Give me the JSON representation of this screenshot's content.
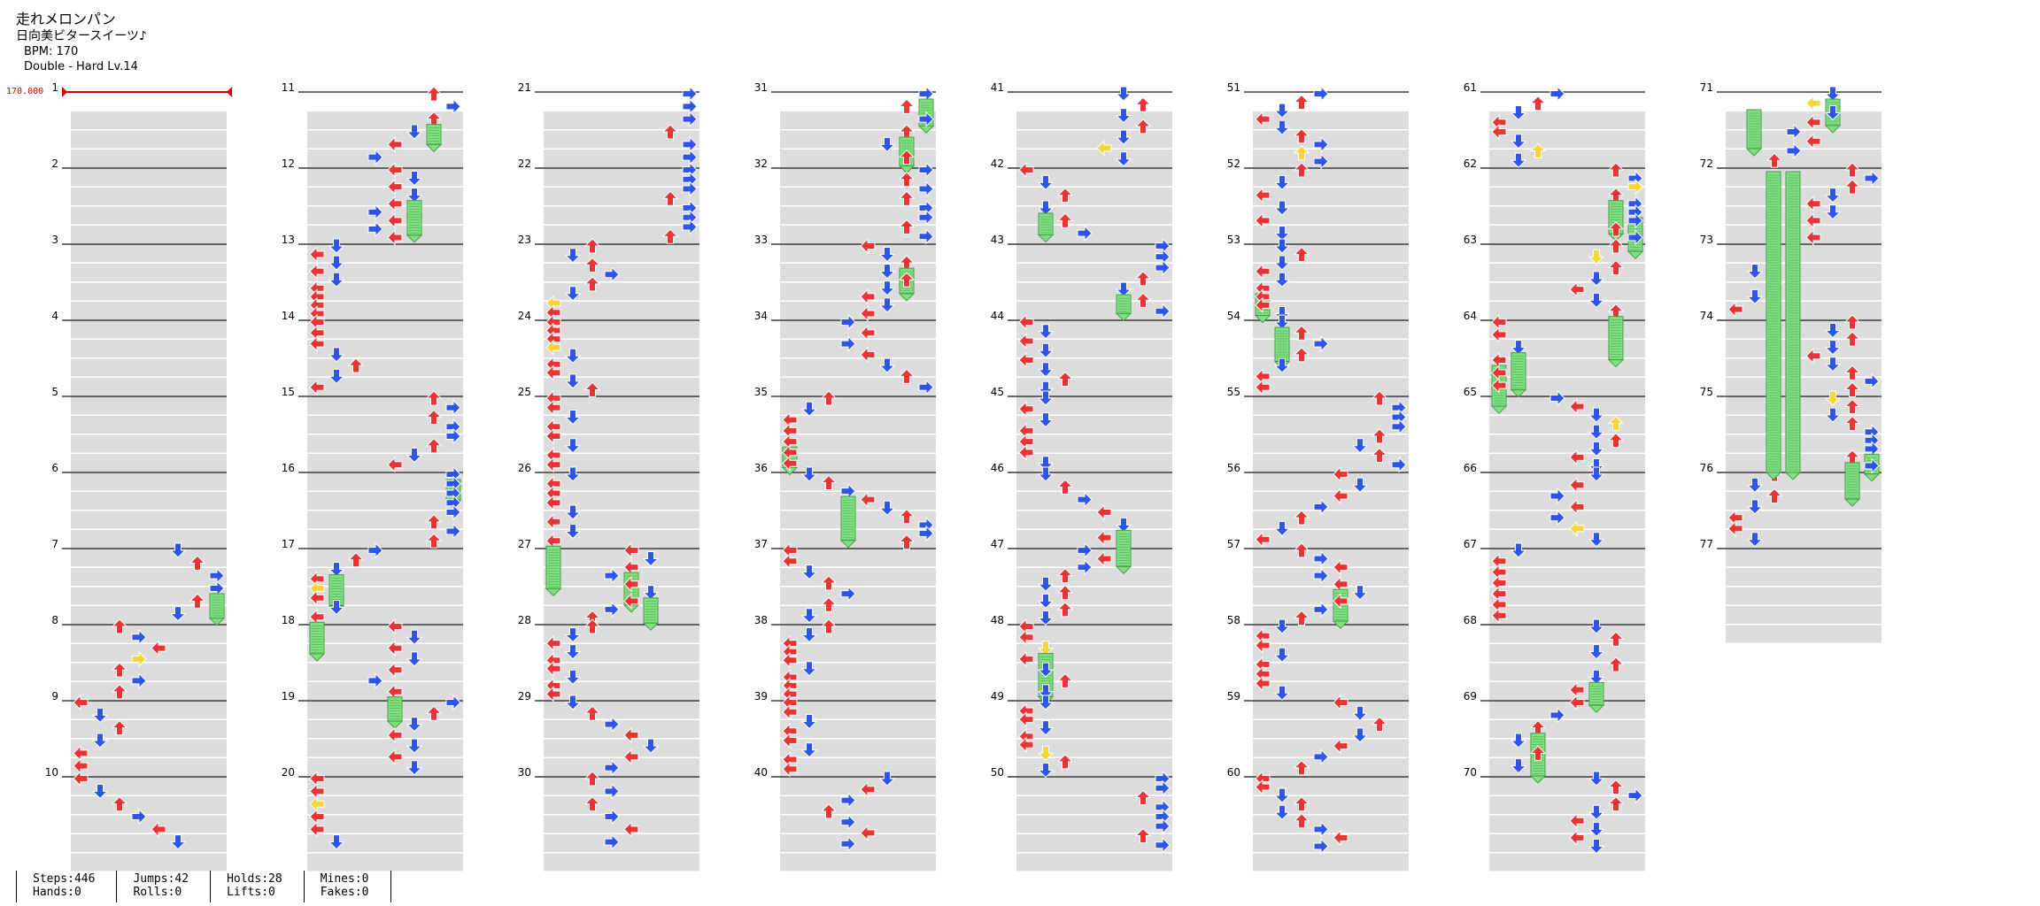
{
  "song": {
    "title": "走れメロンパン",
    "artist": "日向美ビタースイーツ♪",
    "bpm_label": "BPM: 170",
    "difficulty_label": "Double - Hard  Lv.14"
  },
  "bpm_marker": "170.000",
  "measure_numbers": [
    "1",
    "2",
    "3",
    "4",
    "5",
    "6",
    "7",
    "8",
    "9",
    "10",
    "11",
    "12",
    "13",
    "14",
    "15",
    "16",
    "17",
    "18",
    "19",
    "20",
    "21",
    "22",
    "23",
    "24",
    "25",
    "26",
    "27",
    "28",
    "29",
    "30",
    "31",
    "32",
    "33",
    "34",
    "35",
    "36",
    "37",
    "38",
    "39",
    "40",
    "41",
    "42",
    "43",
    "44",
    "45",
    "46",
    "47",
    "48",
    "49",
    "50",
    "51",
    "52",
    "53",
    "54",
    "55",
    "56",
    "57",
    "58",
    "59",
    "60",
    "61",
    "62",
    "63",
    "64",
    "65",
    "66",
    "67",
    "68",
    "69",
    "70",
    "71",
    "72",
    "73",
    "74",
    "75",
    "76",
    "77"
  ],
  "colors": {
    "red_arrow": "#e83434",
    "blue_arrow": "#2f55e6",
    "yellow_arrow": "#f5d53a",
    "hold_green": "#7fe07f",
    "band_gray": "#dcdcdc",
    "bpm_red": "#d00000"
  },
  "stats": [
    {
      "a": "Steps:446",
      "b": "Hands:0"
    },
    {
      "a": "Jumps:42",
      "b": "Rolls:0"
    },
    {
      "a": "Holds:28",
      "b": "Lifts:0"
    },
    {
      "a": "Mines:0",
      "b": "Fakes:0"
    }
  ]
}
